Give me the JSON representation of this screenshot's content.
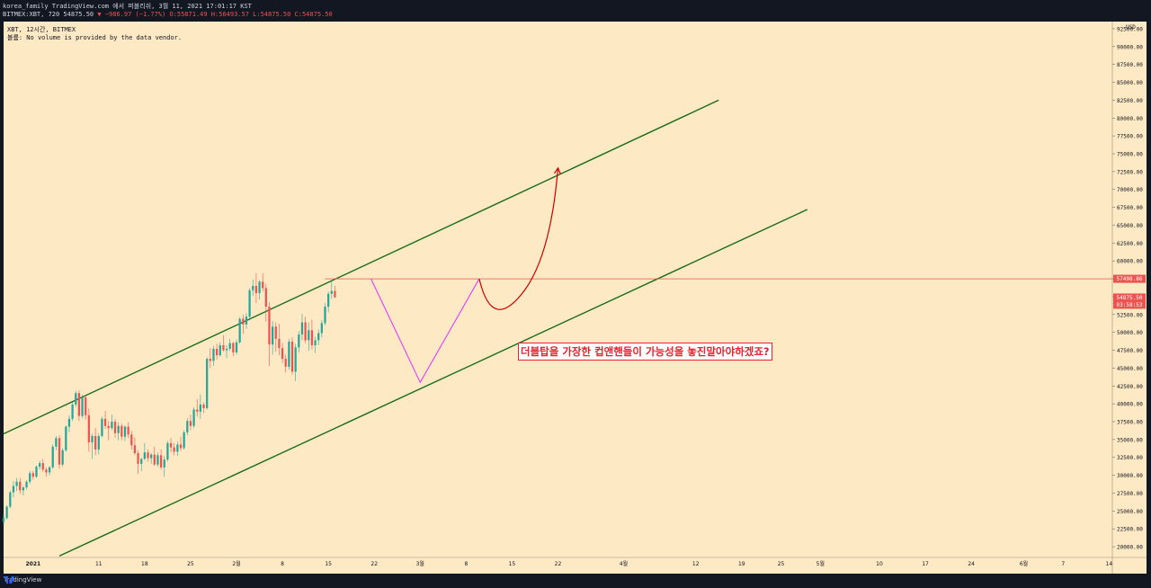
{
  "header": {
    "line1": "korea_family TradingView.com 에서 퍼블리쉬, 3월 11, 2021 17:01:17 KST",
    "symbol": "BITMEX:XBT, 720 54875.50",
    "change": "▼ −986.97 (−1.77%)",
    "ohlc": "O:55871.49 H:56493.57 L:54875.50 C:54875.50"
  },
  "info": {
    "title": "XBT, 12시간, BITMEX",
    "volume_note": "볼륨: No volume is provided by the data vendor."
  },
  "annotation": "더블탑을 가장한 컵앤핸들이 가능성을 놓진말아야하겠죠?",
  "footer": {
    "brand": "TradingView"
  },
  "colors": {
    "background": "#fde9c3",
    "up": "#26a69a",
    "down": "#ef5350",
    "channel": "#1a6b1a",
    "pattern": "#e040fb",
    "arrow": "#cc0000"
  },
  "chart_data": {
    "type": "candlestick",
    "title": "XBT, 12시간, BITMEX",
    "ylabel": "USD",
    "ylim": [
      18500,
      93500
    ],
    "y_ticks": [
      "92500.00",
      "90000.00",
      "87500.00",
      "85000.00",
      "82500.00",
      "80000.00",
      "77500.00",
      "75000.00",
      "72500.00",
      "70000.00",
      "67500.00",
      "65000.00",
      "62500.00",
      "60000.00",
      "57500.00",
      "55000.00",
      "52500.00",
      "50000.00",
      "47500.00",
      "45000.00",
      "42500.00",
      "40000.00",
      "37500.00",
      "35000.00",
      "32500.00",
      "30000.00",
      "27500.00",
      "25000.00",
      "22500.00",
      "20000.00"
    ],
    "x_ticks": [
      "2021",
      "11",
      "18",
      "25",
      "2월",
      "8",
      "15",
      "22",
      "3월",
      "8",
      "15",
      "22",
      "4월",
      "12",
      "19",
      "25",
      "5월",
      "10",
      "17",
      "24",
      "6월",
      "7",
      "14"
    ],
    "x_tick_days": [
      0,
      10,
      17,
      24,
      31,
      38,
      45,
      52,
      59,
      66,
      73,
      80,
      90,
      101,
      108,
      114,
      120,
      129,
      136,
      143,
      151,
      157,
      164
    ],
    "x_range_days": [
      -4.5,
      164.5
    ],
    "price_labels": [
      {
        "value": 57498.86,
        "text": "57498.86",
        "color": "#ef5350"
      },
      {
        "value": 54875.5,
        "text": "54875.50",
        "sub": "03:58:53",
        "color": "#ef5350"
      }
    ],
    "horizontal_line": {
      "value": 57498.86,
      "day_start": 44.5
    },
    "channel_upper": [
      [
        -4.5,
        35800
      ],
      [
        104.5,
        82500
      ]
    ],
    "channel_lower": [
      [
        4,
        18700
      ],
      [
        118,
        67200
      ]
    ],
    "pattern_lines": [
      [
        51.5,
        57500
      ],
      [
        59,
        43000
      ],
      [
        68,
        57500
      ]
    ],
    "projection_points": [
      [
        68,
        57500
      ],
      [
        70,
        52500
      ],
      [
        75,
        56000
      ],
      [
        80,
        73000
      ]
    ],
    "candles": [
      [
        23500,
        24500,
        23000,
        24000
      ],
      [
        24000,
        25800,
        23800,
        25600
      ],
      [
        25600,
        27800,
        25400,
        27600
      ],
      [
        27600,
        29200,
        26900,
        28500
      ],
      [
        28500,
        29600,
        27800,
        29100
      ],
      [
        29100,
        29600,
        27400,
        27900
      ],
      [
        27900,
        28500,
        27200,
        28300
      ],
      [
        28300,
        29300,
        28000,
        29100
      ],
      [
        29100,
        30600,
        28800,
        30300
      ],
      [
        30300,
        30600,
        29400,
        29800
      ],
      [
        29800,
        31400,
        29600,
        31200
      ],
      [
        31200,
        32000,
        30800,
        31700
      ],
      [
        31700,
        32300,
        30500,
        30800
      ],
      [
        30800,
        31100,
        29800,
        30400
      ],
      [
        30400,
        31300,
        30000,
        31100
      ],
      [
        31100,
        34300,
        30900,
        34000
      ],
      [
        34000,
        35500,
        33500,
        35200
      ],
      [
        35200,
        35600,
        30900,
        31500
      ],
      [
        31500,
        33800,
        31200,
        33500
      ],
      [
        33500,
        37000,
        33300,
        36800
      ],
      [
        36800,
        38400,
        36000,
        37900
      ],
      [
        37900,
        40200,
        37600,
        39900
      ],
      [
        39900,
        41800,
        39600,
        41500
      ],
      [
        41500,
        41900,
        37600,
        38300
      ],
      [
        38300,
        41300,
        38000,
        40900
      ],
      [
        40900,
        41200,
        37800,
        38400
      ],
      [
        38400,
        39400,
        33300,
        34600
      ],
      [
        34600,
        35800,
        32300,
        35500
      ],
      [
        35500,
        36600,
        32800,
        33600
      ],
      [
        33600,
        35900,
        32900,
        35500
      ],
      [
        35500,
        38200,
        35300,
        37900
      ],
      [
        37900,
        39000,
        36500,
        36900
      ],
      [
        36900,
        37600,
        34900,
        36600
      ],
      [
        36600,
        38500,
        36300,
        37500
      ],
      [
        37500,
        37900,
        35200,
        35900
      ],
      [
        35900,
        37400,
        34900,
        36900
      ],
      [
        36900,
        37200,
        34900,
        35400
      ],
      [
        35400,
        37000,
        34800,
        36800
      ],
      [
        36800,
        37400,
        35200,
        35700
      ],
      [
        35700,
        36200,
        33600,
        34200
      ],
      [
        34200,
        35300,
        32800,
        33100
      ],
      [
        33100,
        33500,
        30200,
        31600
      ],
      [
        31600,
        32400,
        30600,
        32300
      ],
      [
        32300,
        34500,
        32100,
        33200
      ],
      [
        33200,
        33600,
        31900,
        32400
      ],
      [
        32400,
        33100,
        31600,
        32900
      ],
      [
        32900,
        34000,
        31300,
        31500
      ],
      [
        31500,
        33200,
        31200,
        32800
      ],
      [
        32800,
        33600,
        30800,
        31100
      ],
      [
        31100,
        32700,
        29800,
        32200
      ],
      [
        32200,
        34800,
        31900,
        34500
      ],
      [
        34500,
        35200,
        33200,
        33900
      ],
      [
        33900,
        34500,
        32800,
        33300
      ],
      [
        33300,
        34700,
        32700,
        34300
      ],
      [
        34300,
        35400,
        33400,
        33800
      ],
      [
        33800,
        36300,
        33600,
        36000
      ],
      [
        36000,
        38000,
        35600,
        37600
      ],
      [
        37600,
        38500,
        36300,
        36900
      ],
      [
        36900,
        39500,
        36600,
        39200
      ],
      [
        39200,
        40700,
        38200,
        38900
      ],
      [
        38900,
        41300,
        37900,
        39900
      ],
      [
        39900,
        40200,
        38700,
        39400
      ],
      [
        39400,
        46500,
        39200,
        46300
      ],
      [
        46300,
        47800,
        45000,
        46000
      ],
      [
        46000,
        48100,
        45300,
        47700
      ],
      [
        47700,
        48400,
        46200,
        46800
      ],
      [
        46800,
        48600,
        46600,
        48200
      ],
      [
        48200,
        49600,
        47300,
        47500
      ],
      [
        47500,
        48200,
        46400,
        47700
      ],
      [
        47700,
        49100,
        47400,
        48500
      ],
      [
        48500,
        48700,
        46700,
        47200
      ],
      [
        47200,
        49000,
        46900,
        48600
      ],
      [
        48600,
        52100,
        48400,
        51900
      ],
      [
        51900,
        52500,
        49800,
        51100
      ],
      [
        51100,
        52700,
        50500,
        52200
      ],
      [
        52200,
        56200,
        51700,
        55900
      ],
      [
        55900,
        57400,
        55100,
        56500
      ],
      [
        56500,
        58300,
        54100,
        55500
      ],
      [
        55500,
        57300,
        54600,
        57100
      ],
      [
        57100,
        58300,
        55700,
        56200
      ],
      [
        56200,
        56800,
        51500,
        53600
      ],
      [
        53600,
        54200,
        45300,
        48300
      ],
      [
        48300,
        51600,
        46900,
        50800
      ],
      [
        50800,
        51400,
        47300,
        49100
      ],
      [
        49100,
        51200,
        46800,
        47800
      ],
      [
        47800,
        48500,
        45700,
        46300
      ],
      [
        46300,
        46900,
        44400,
        45200
      ],
      [
        45200,
        49100,
        44800,
        48700
      ],
      [
        48700,
        49300,
        44100,
        44500
      ],
      [
        44500,
        48400,
        43200,
        47900
      ],
      [
        47900,
        50200,
        47200,
        49700
      ],
      [
        49700,
        52600,
        48900,
        51400
      ],
      [
        51400,
        52200,
        48500,
        48900
      ],
      [
        48900,
        51400,
        47400,
        50300
      ],
      [
        50300,
        51800,
        47600,
        48200
      ],
      [
        48200,
        49400,
        47100,
        48900
      ],
      [
        48900,
        50400,
        48200,
        49900
      ],
      [
        49900,
        51700,
        49300,
        51300
      ],
      [
        51300,
        54100,
        51000,
        53600
      ],
      [
        53600,
        55700,
        52800,
        55400
      ],
      [
        55400,
        57200,
        54700,
        55800
      ],
      [
        55800,
        56500,
        54800,
        54900
      ]
    ],
    "first_candle_day": -4.5,
    "candle_step_days": 0.5
  }
}
